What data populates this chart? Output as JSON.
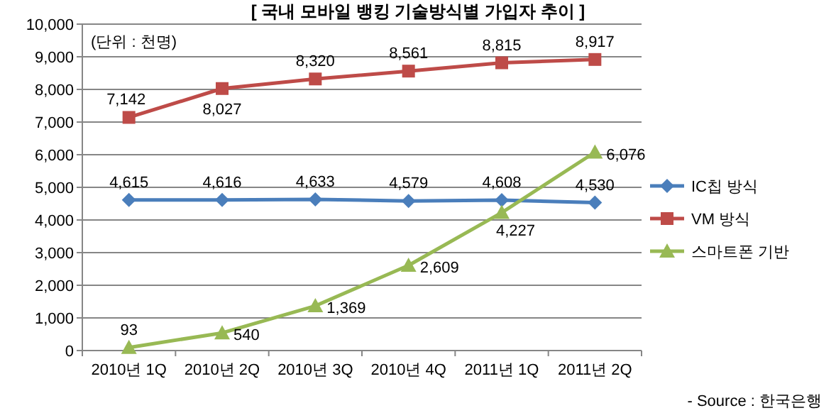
{
  "chart_data": {
    "type": "line",
    "title": "[ 국내 모바일 뱅킹 기술방식별 가입자 추이 ]",
    "categories": [
      "2010년 1Q",
      "2010년 2Q",
      "2010년 3Q",
      "2010년 4Q",
      "2011년 1Q",
      "2011년 2Q"
    ],
    "series": [
      {
        "name": "IC칩 방식",
        "color": "#4a7ebb",
        "marker": "diamond",
        "values": [
          4615,
          4616,
          4633,
          4579,
          4608,
          4530
        ],
        "value_labels": [
          "4,615",
          "4,616",
          "4,633",
          "4,579",
          "4,608",
          "4,530"
        ]
      },
      {
        "name": "VM 방식",
        "color": "#be4b48",
        "marker": "square",
        "values": [
          7142,
          8027,
          8320,
          8561,
          8815,
          8917
        ],
        "value_labels": [
          "7,142",
          "8,027",
          "8,320",
          "8,561",
          "8,815",
          "8,917"
        ]
      },
      {
        "name": "스마트폰 기반",
        "color": "#98b954",
        "marker": "triangle",
        "values": [
          93,
          540,
          1369,
          2609,
          4227,
          6076
        ],
        "value_labels": [
          "93",
          "540",
          "1,369",
          "2,609",
          "4,227",
          "6,076"
        ]
      }
    ],
    "ylim": [
      0,
      10000
    ],
    "yticks": [
      0,
      {
        "value": 1000,
        "label": "1,000"
      },
      {
        "value": 2000,
        "label": "2,000"
      },
      {
        "value": 3000,
        "label": "3,000"
      },
      {
        "value": 4000,
        "label": "4,000"
      },
      {
        "value": 5000,
        "label": "5,000"
      },
      {
        "value": 6000,
        "label": "6,000"
      },
      {
        "value": 7000,
        "label": "7,000"
      },
      {
        "value": 8000,
        "label": "8,000"
      },
      {
        "value": 9000,
        "label": "9,000"
      },
      {
        "value": 10000,
        "label": "10,000"
      }
    ],
    "grid": "y",
    "legend": "right",
    "line_style": "solid",
    "annotations": [
      "(단위 : 천명)",
      "- Source : 한국은행"
    ]
  }
}
